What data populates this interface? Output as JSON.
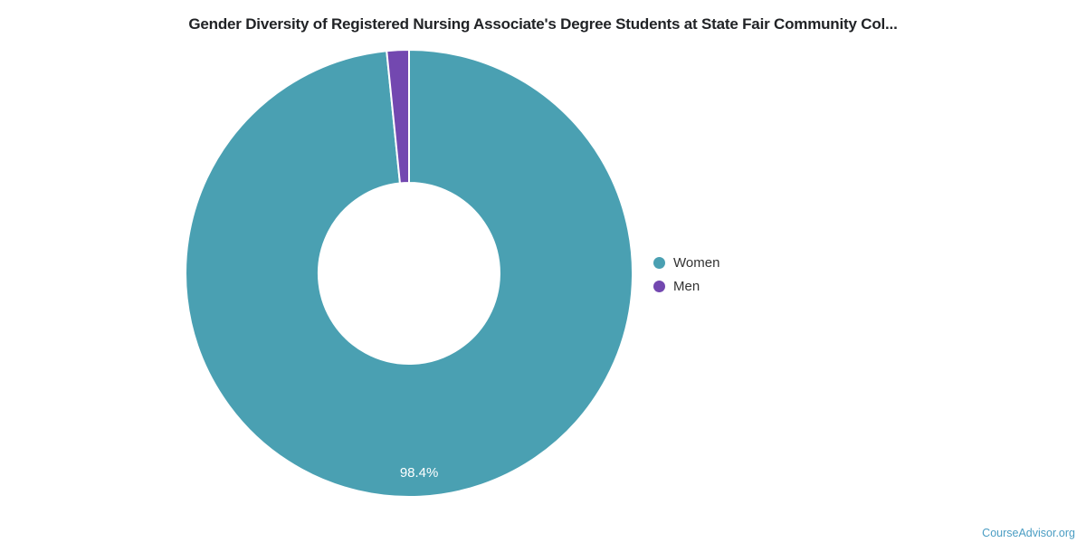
{
  "page": {
    "watermark": "CourseAdvisor.org"
  },
  "chart_data": {
    "type": "pie",
    "subtype": "donut",
    "title": "Gender Diversity of Registered Nursing Associate's Degree Students at State Fair Community Col...",
    "start_angle_deg": 0,
    "direction": "clockwise",
    "legend_position": "right-middle",
    "slice_border_color": "#ffffff",
    "background_color": "#ffffff",
    "series": [
      {
        "name": "Women",
        "value": 98.4,
        "color": "#4AA0B2",
        "data_label": "98.4%"
      },
      {
        "name": "Men",
        "value": 1.6,
        "color": "#7348B0",
        "data_label": ""
      }
    ]
  }
}
